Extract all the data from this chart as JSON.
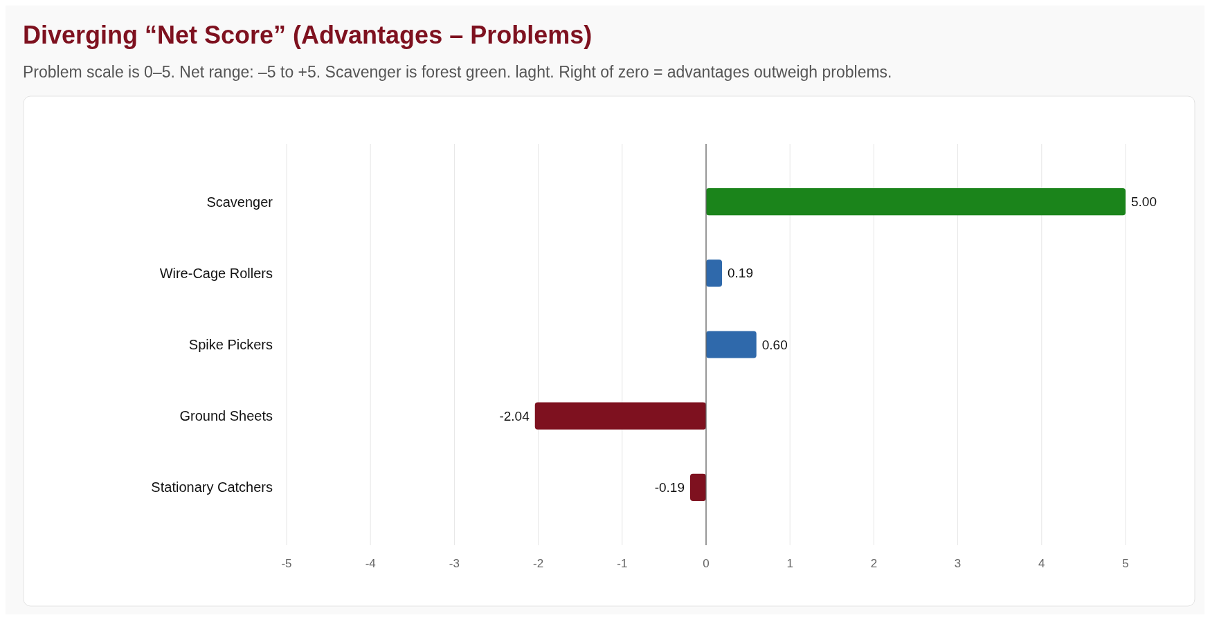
{
  "chart_data": {
    "type": "bar",
    "orientation": "horizontal",
    "title": "Diverging “Net Score” (Advantages – Problems)",
    "subtitle": "Problem scale is 0–5. Net range: –5 to +5. Scavenger is forest green. laght. Right of zero = advantages outweigh problems.",
    "categories": [
      "Scavenger",
      "Wire-Cage Rollers",
      "Spike Pickers",
      "Ground Sheets",
      "Stationary Catchers"
    ],
    "values": [
      5.0,
      0.19,
      0.6,
      -2.04,
      -0.19
    ],
    "colors": [
      "#1b841b",
      "#2f69ab",
      "#2f69ab",
      "#7e111f",
      "#7e111f"
    ],
    "value_labels": [
      "5.00",
      "0.19",
      "0.60",
      "-2.04",
      "-0.19"
    ],
    "grid": "x",
    "xlim": [
      -5,
      5
    ],
    "xticks": [
      -5,
      -4,
      -3,
      -2,
      -1,
      0,
      1,
      2,
      3,
      4,
      5
    ]
  }
}
